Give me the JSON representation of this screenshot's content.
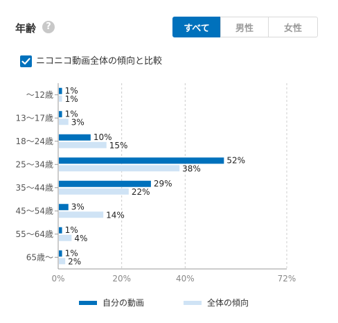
{
  "header": {
    "title": "年齢",
    "help_icon": "question-circle-icon",
    "help_glyph": "?"
  },
  "filters": {
    "tabs": [
      {
        "label": "すべて",
        "active": true
      },
      {
        "label": "男性",
        "active": false
      },
      {
        "label": "女性",
        "active": false
      }
    ]
  },
  "compare": {
    "checked": true,
    "label": "ニコニコ動画全体の傾向と比較",
    "check_icon": "checkmark-icon"
  },
  "colors": {
    "accent": "#0071bc",
    "series_own": "#0071bc",
    "series_overall": "#cfe3f5",
    "grid": "#cccccc",
    "axis": "#999999"
  },
  "chart_data": {
    "type": "bar",
    "orientation": "horizontal",
    "categories": [
      "〜12歳",
      "13〜17歳",
      "18〜24歳",
      "25〜34歳",
      "35〜44歳",
      "45〜54歳",
      "55〜64歳",
      "65歳〜"
    ],
    "series": [
      {
        "name": "自分の動画",
        "values": [
          1,
          1,
          10,
          52,
          29,
          3,
          1,
          1
        ]
      },
      {
        "name": "全体の傾向",
        "values": [
          1,
          3,
          15,
          38,
          22,
          14,
          4,
          2
        ]
      }
    ],
    "value_unit": "%",
    "xlim": [
      0,
      72
    ],
    "xticks": [
      0,
      20,
      40,
      72
    ],
    "xtick_labels": [
      "0%",
      "20%",
      "40%",
      "72%"
    ],
    "grid": true,
    "legend_position": "bottom"
  }
}
